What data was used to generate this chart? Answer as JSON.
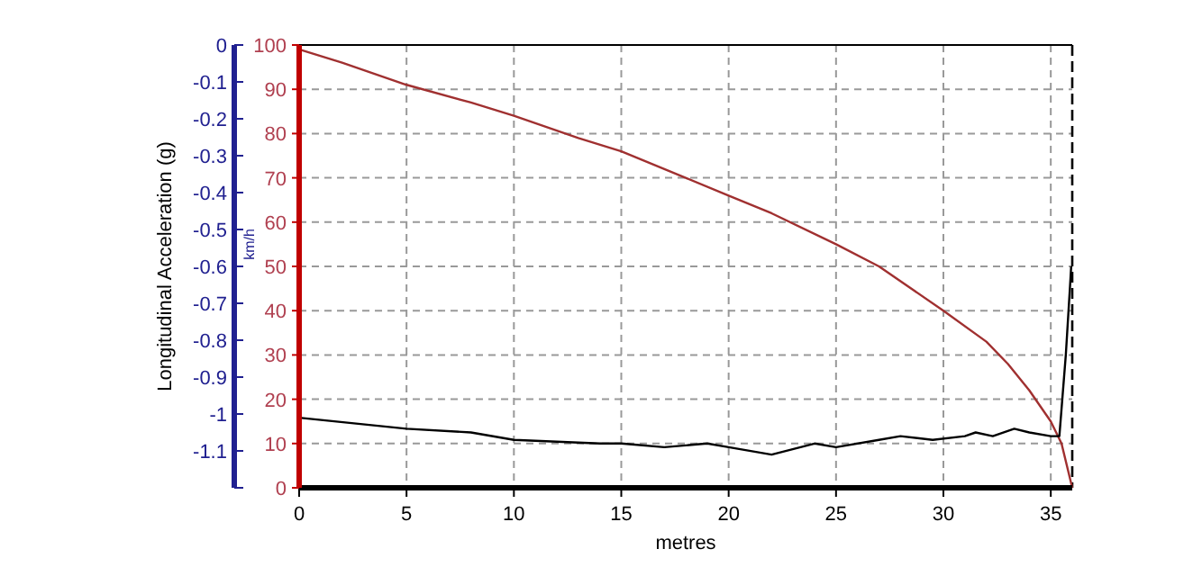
{
  "chart_data": {
    "type": "line",
    "xlabel": "metres",
    "ylabel": "km/h",
    "y2label": "Longitudinal Acceleration (g)",
    "xlim": [
      0,
      36
    ],
    "xticks": [
      0,
      5,
      10,
      15,
      20,
      25,
      30,
      35
    ],
    "ylim": [
      0,
      100
    ],
    "yticks": [
      0,
      10,
      20,
      30,
      40,
      50,
      60,
      70,
      80,
      90,
      100
    ],
    "y2lim": [
      -1.2,
      0
    ],
    "y2ticks": [
      0,
      -0.1,
      -0.2,
      -0.3,
      -0.4,
      -0.5,
      -0.6,
      -0.7,
      -0.8,
      -0.9,
      -1,
      -1.1,
      {
        "value": -1.2,
        "label": null
      }
    ],
    "grid": true,
    "ref_lines": [
      {
        "axis": "x",
        "value": 36,
        "color": "#000000",
        "line_style": "dashed"
      }
    ],
    "series": [
      {
        "color": "#a03030",
        "x": [
          0,
          2,
          5,
          8,
          10,
          13,
          15,
          18,
          20,
          22,
          25,
          27,
          30,
          32,
          33,
          34,
          35,
          35.5,
          36
        ],
        "values": [
          99,
          96,
          91,
          87,
          84,
          79,
          76,
          70,
          66,
          62,
          55,
          50,
          40,
          33,
          28,
          22,
          15,
          10,
          0
        ]
      },
      {
        "color": "#000000",
        "axis": "y2",
        "x": [
          0,
          5,
          8,
          10,
          14,
          15,
          17,
          19,
          20,
          22,
          24,
          25,
          27,
          28,
          29.5,
          31,
          31.5,
          32.3,
          33.3,
          34,
          35,
          35.4,
          35.7,
          35.9,
          35.95
        ],
        "values": [
          -1.01,
          -1.04,
          -1.05,
          -1.07,
          -1.08,
          -1.08,
          -1.09,
          -1.08,
          -1.09,
          -1.11,
          -1.08,
          -1.09,
          -1.07,
          -1.06,
          -1.07,
          -1.06,
          -1.05,
          -1.06,
          -1.04,
          -1.05,
          -1.06,
          -1.06,
          -0.84,
          -0.65,
          -0.6
        ]
      }
    ]
  }
}
